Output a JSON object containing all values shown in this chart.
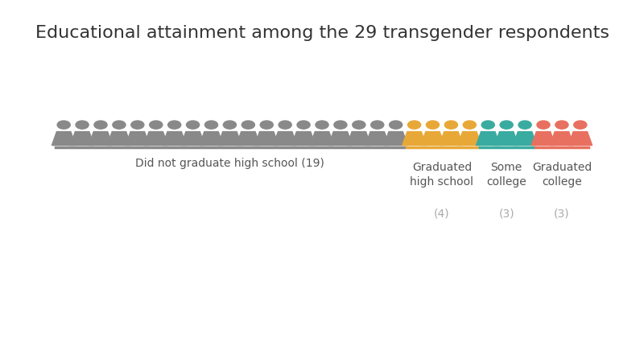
{
  "title": "Educational attainment among the 29 transgender respondents",
  "title_fontsize": 16,
  "background_color": "#ffffff",
  "groups": [
    {
      "label": "Did not graduate high school",
      "count": 19,
      "color": "#898989"
    },
    {
      "label": "Graduated\nhigh school",
      "count": 4,
      "color": "#E8A838"
    },
    {
      "label": "Some\ncollege",
      "count": 3,
      "color": "#3AABA0"
    },
    {
      "label": "Graduated\ncollege",
      "count": 3,
      "color": "#E87060"
    }
  ],
  "figure_bg": "#ffffff",
  "label_color": "#555555",
  "count_color": "#aaaaaa",
  "label_fontsize": 10,
  "count_fontsize": 10
}
